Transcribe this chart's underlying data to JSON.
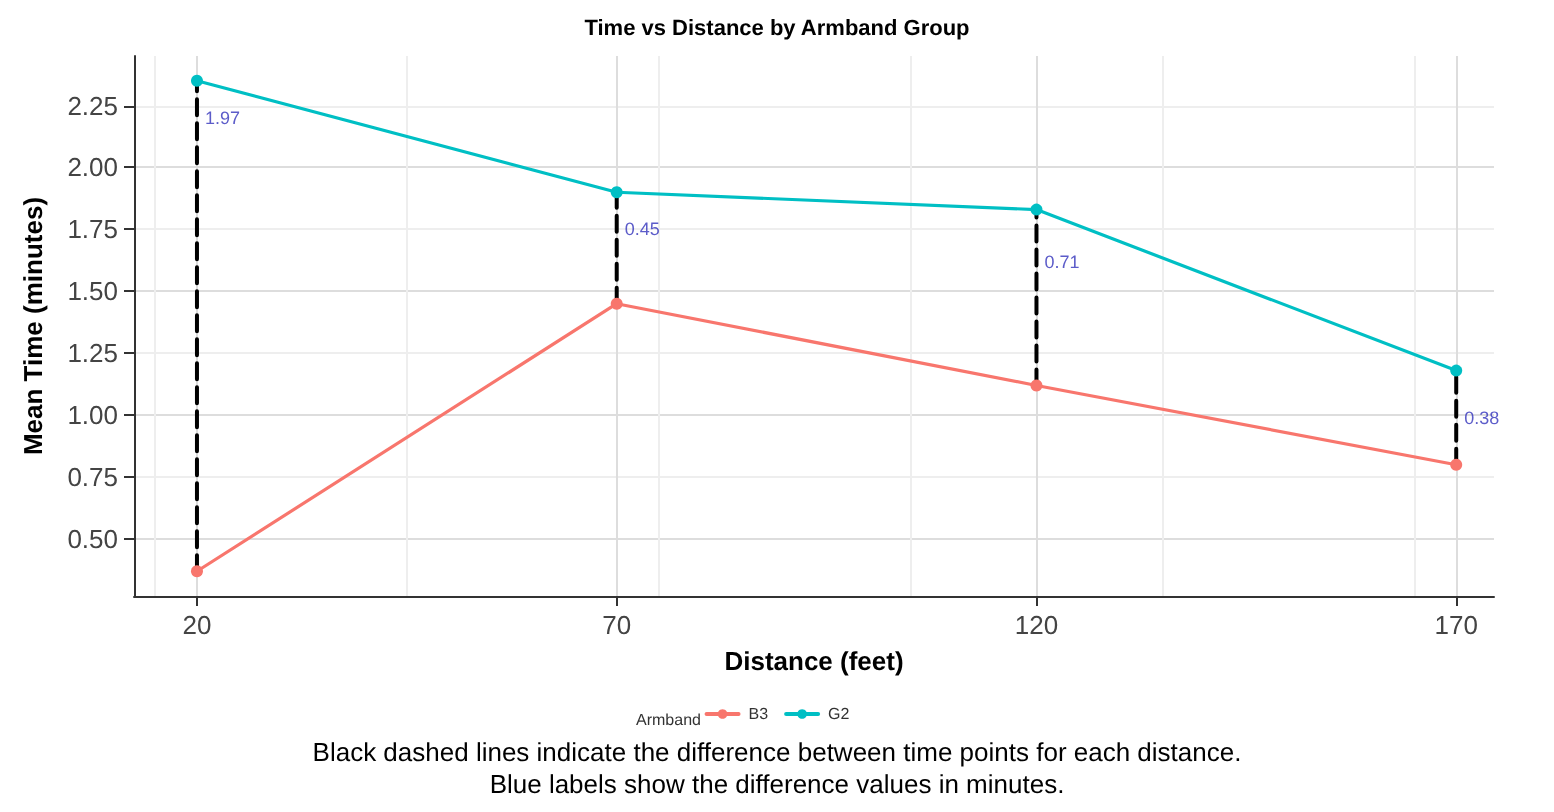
{
  "chart_data": {
    "type": "line",
    "title": "Time vs Distance by Armband Group",
    "xlabel": "Distance (feet)",
    "ylabel": "Mean Time (minutes)",
    "legend_title": "Armband",
    "x": [
      20,
      70,
      120,
      170
    ],
    "series": [
      {
        "name": "B3",
        "color": "#f8766d",
        "values": [
          0.37,
          1.45,
          1.12,
          0.8
        ]
      },
      {
        "name": "G2",
        "color": "#00bfc4",
        "values": [
          2.35,
          1.9,
          1.83,
          1.18
        ]
      },
      {
        "color": "#000000",
        "line_style": "dashed",
        "marker": "none",
        "x": [
          20,
          20
        ],
        "values": [
          0.37,
          2.35
        ]
      },
      {
        "color": "#000000",
        "line_style": "dashed",
        "marker": "none",
        "x": [
          70,
          70
        ],
        "values": [
          1.45,
          1.9
        ]
      },
      {
        "color": "#000000",
        "line_style": "dashed",
        "marker": "none",
        "x": [
          120,
          120
        ],
        "values": [
          1.12,
          1.83
        ]
      },
      {
        "color": "#000000",
        "line_style": "dashed",
        "marker": "none",
        "x": [
          170,
          170
        ],
        "values": [
          0.8,
          1.18
        ]
      }
    ],
    "annotations": [
      {
        "text": "1.97",
        "x": 20,
        "y": 2.2
      },
      {
        "text": "0.45",
        "x": 70,
        "y": 1.75
      },
      {
        "text": "0.71",
        "x": 120,
        "y": 1.62
      },
      {
        "text": "0.38",
        "x": 170,
        "y": 0.99
      },
      "Black dashed lines indicate the difference between time points for each distance.\nBlue labels show the difference values in minutes."
    ],
    "xlim": [
      12.5,
      174.5
    ],
    "xticks": [
      20,
      70,
      120,
      170
    ],
    "ylim": [
      0.27,
      2.45
    ],
    "yticks": [
      {
        "value": 0.5,
        "label": "0.50"
      },
      0.75,
      {
        "value": 1,
        "label": "1.00"
      },
      1.25,
      {
        "value": 1.5,
        "label": "1.50"
      },
      1.75,
      {
        "value": 2,
        "label": "2.00"
      },
      2.25
    ],
    "grid": true,
    "legend": "bottom",
    "marker": "circle",
    "line_style": "solid"
  }
}
